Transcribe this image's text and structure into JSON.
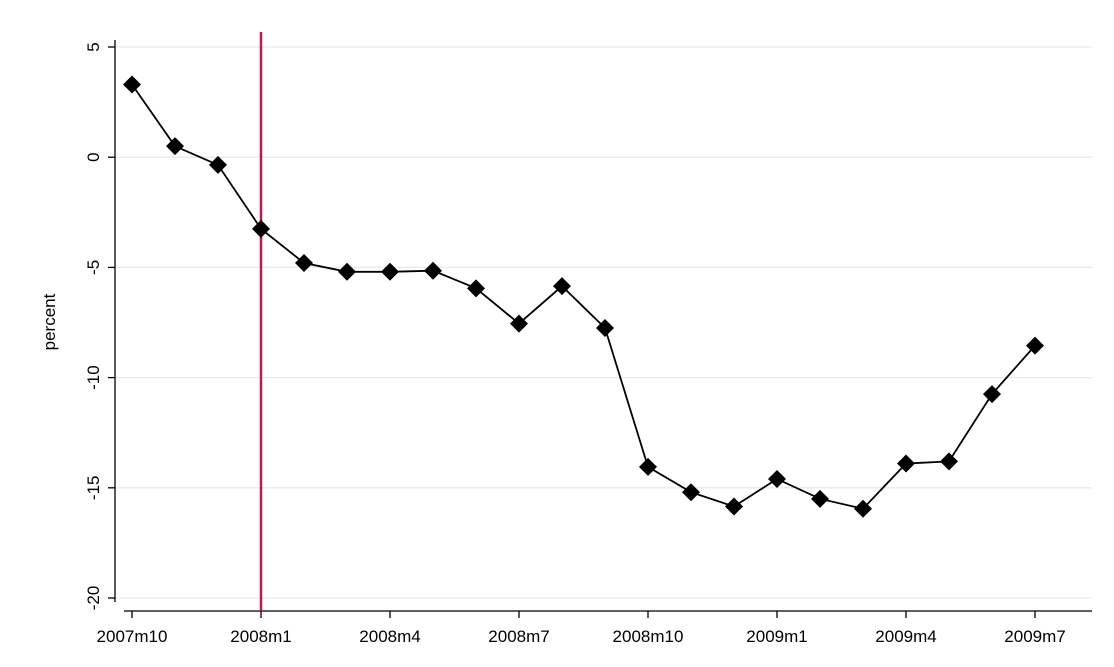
{
  "chart_data": {
    "type": "line",
    "title": "",
    "xlabel": "",
    "ylabel": "percent",
    "ylim": [
      -20,
      5
    ],
    "yticks": [
      5,
      0,
      -5,
      -10,
      -15,
      -20
    ],
    "xticks": [
      "2007m10",
      "2008m1",
      "2008m4",
      "2008m7",
      "2008m10",
      "2009m1",
      "2009m4",
      "2009m7"
    ],
    "x": [
      "2007m10",
      "2007m11",
      "2007m12",
      "2008m1",
      "2008m2",
      "2008m3",
      "2008m4",
      "2008m5",
      "2008m6",
      "2008m7",
      "2008m8",
      "2008m9",
      "2008m10",
      "2008m11",
      "2008m12",
      "2009m1",
      "2009m2",
      "2009m3",
      "2009m4",
      "2009m5",
      "2009m6",
      "2009m7"
    ],
    "series": [
      {
        "values": [
          3.3,
          0.5,
          -0.35,
          -3.25,
          -4.8,
          -5.2,
          -5.2,
          -5.15,
          -5.95,
          -7.55,
          -5.85,
          -7.75,
          -14.05,
          -15.2,
          -15.85,
          -14.6,
          -15.5,
          -15.95,
          -13.9,
          -13.8,
          -10.75,
          -8.55
        ]
      }
    ],
    "reference_line": {
      "x": "2008m1",
      "color": "#c0184a"
    },
    "colors": {
      "line": "#000000",
      "marker": "#000000",
      "grid": "#e3ecee",
      "axis": "#000000"
    },
    "grid": true,
    "marker": "diamond"
  }
}
